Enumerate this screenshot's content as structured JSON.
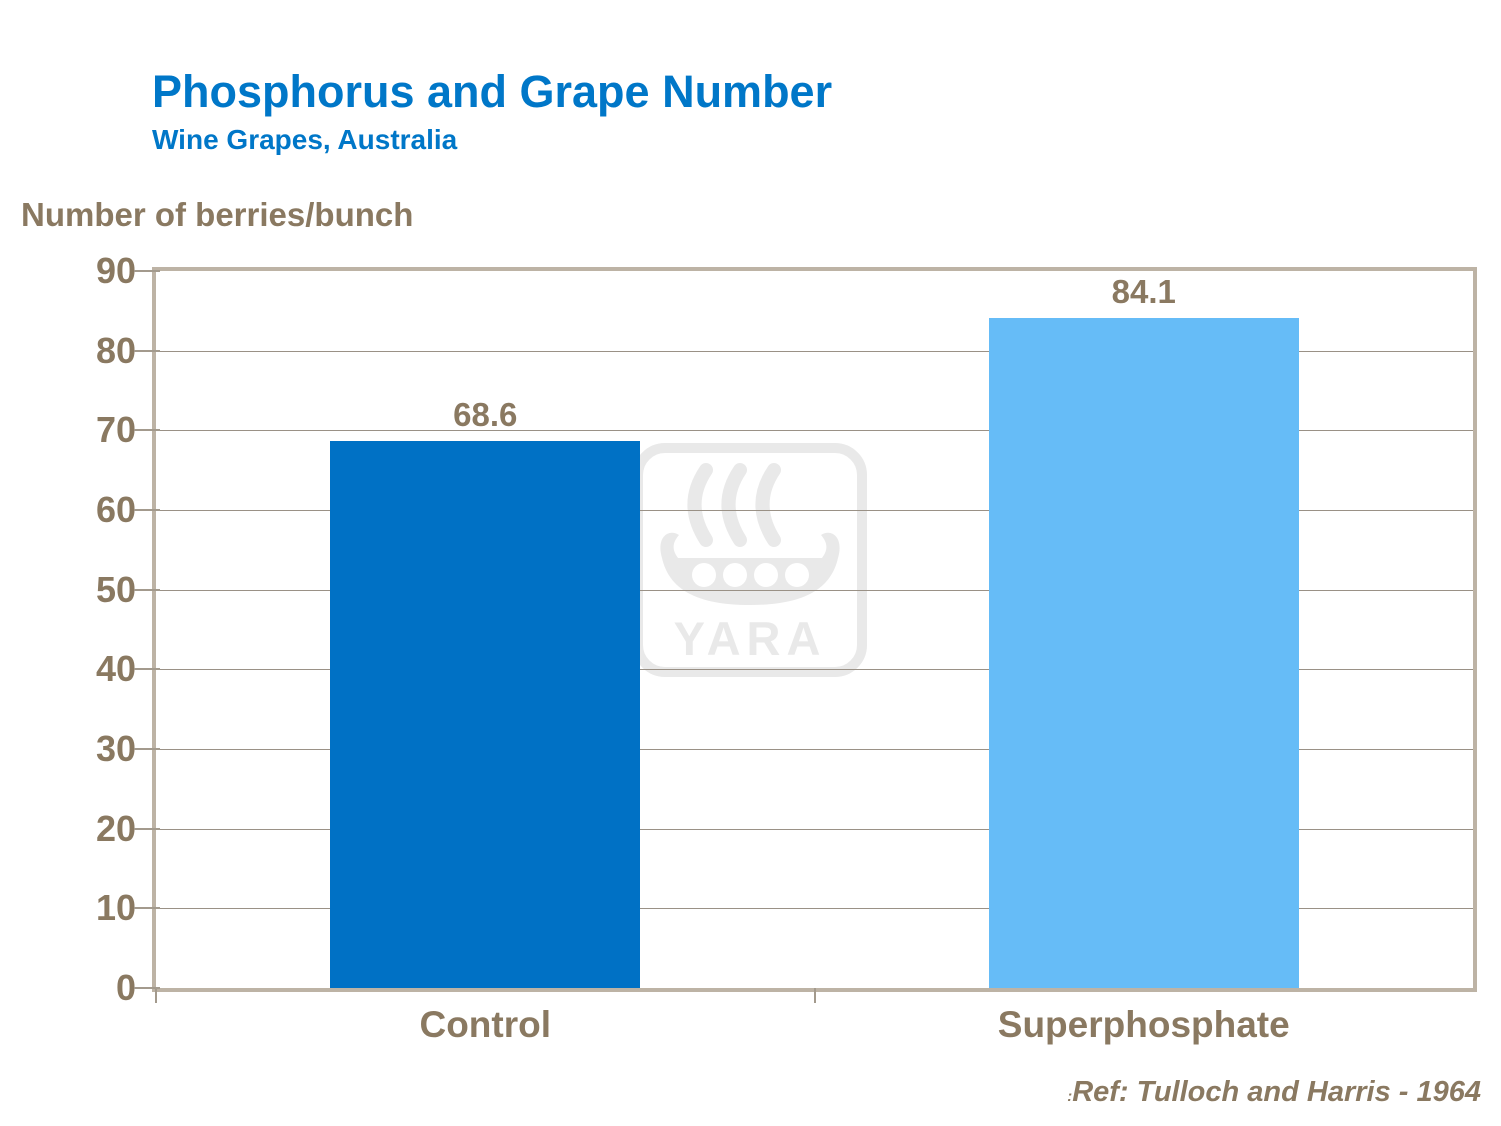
{
  "header": {
    "title": "Phosphorus and Grape Number",
    "subtitle": "Wine Grapes, Australia"
  },
  "y_axis_title": "Number of berries/bunch",
  "watermark_text": "YARA",
  "footer": {
    "ref_prefix": ":",
    "reference": "Ref: Tulloch and Harris - 1964"
  },
  "colors": {
    "title_blue": "#0077C8",
    "text_brown": "#8A7961",
    "axis_border_tan": "#BDB3A5",
    "gridline_gray": "#9A9186",
    "bar_control_blue": "#0071C5",
    "bar_superphosphate_blue": "#66BCF7",
    "watermark_gray": "#E9E9E9"
  },
  "chart_data": {
    "type": "bar",
    "title": "Phosphorus and Grape Number",
    "subtitle": "Wine Grapes, Australia",
    "categories": [
      "Control",
      "Superphosphate"
    ],
    "values": [
      68.6,
      84.1
    ],
    "value_labels": [
      "68.6",
      "84.1"
    ],
    "bar_colors": [
      "#0071C5",
      "#66BCF7"
    ],
    "xlabel": "",
    "ylabel": "Number of berries/bunch",
    "ylim": [
      0,
      90
    ],
    "ytick_step": 10,
    "grid": true,
    "legend": false,
    "annotation": "Ref: Tulloch and Harris - 1964"
  }
}
